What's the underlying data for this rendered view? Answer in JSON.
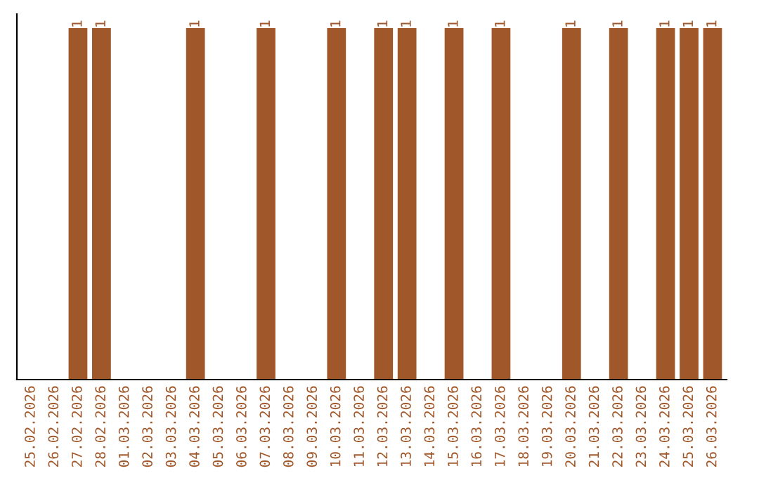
{
  "chart_data": {
    "type": "bar",
    "categories": [
      "25.02.2026",
      "26.02.2026",
      "27.02.2026",
      "28.02.2026",
      "01.03.2026",
      "02.03.2026",
      "03.03.2026",
      "04.03.2026",
      "05.03.2026",
      "06.03.2026",
      "07.03.2026",
      "08.03.2026",
      "09.03.2026",
      "10.03.2026",
      "11.03.2026",
      "12.03.2026",
      "13.03.2026",
      "14.03.2026",
      "15.03.2026",
      "16.03.2026",
      "17.03.2026",
      "18.03.2026",
      "19.03.2026",
      "20.03.2026",
      "21.03.2026",
      "22.03.2026",
      "23.03.2026",
      "24.03.2026",
      "25.03.2026",
      "26.03.2026"
    ],
    "values": [
      0,
      0,
      1,
      1,
      0,
      0,
      0,
      1,
      0,
      0,
      1,
      0,
      0,
      1,
      0,
      1,
      1,
      0,
      1,
      0,
      1,
      0,
      0,
      1,
      0,
      1,
      0,
      1,
      1,
      1
    ],
    "value_labels": [
      null,
      null,
      "1",
      "1",
      null,
      null,
      null,
      "1",
      null,
      null,
      "1",
      null,
      null,
      "1",
      null,
      "1",
      "1",
      null,
      "1",
      null,
      "1",
      null,
      null,
      "1",
      null,
      "1",
      null,
      "1",
      "1",
      "1"
    ],
    "color": "#a0572a",
    "grid": false,
    "legend": false
  }
}
